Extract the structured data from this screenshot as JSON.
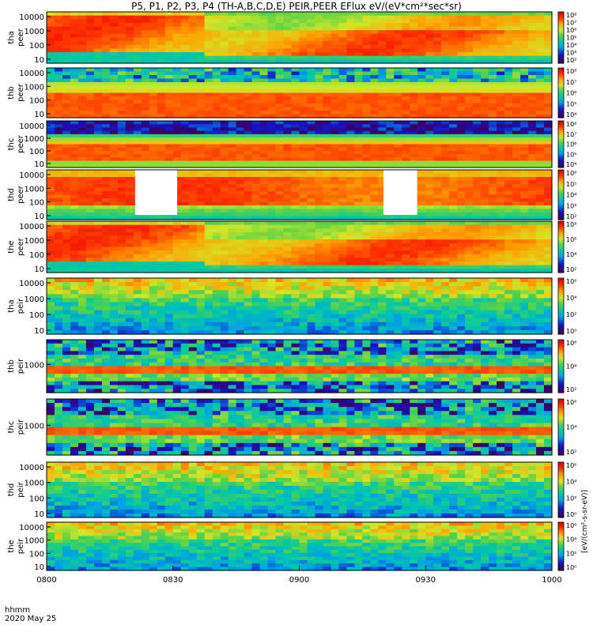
{
  "title": "P5, P1, P2, P3, P4 (TH-A,B,C,D,E) PEIR,PEER EFlux eV/(eV*cm²*sec*sr)",
  "time_axis": {
    "label_line1": "hhmm",
    "label_line2": "2020 May 25",
    "ticks": [
      "0800",
      "0830",
      "0900",
      "0930",
      "1000"
    ]
  },
  "colorbar_label": "[eV/(cm²-s-sr-eV)]",
  "chart_data": {
    "type": "heatmap",
    "x_range": [
      "0800",
      "1000"
    ],
    "panels": [
      {
        "id": "tha_peer",
        "label1": "tha",
        "label2": "peer",
        "yticks": [
          "10",
          "100",
          "1000",
          "10000"
        ],
        "cbar_ticks": [
          "10²",
          "10³",
          "10⁴",
          "10⁵",
          "10⁶",
          "10⁷",
          "10⁸"
        ],
        "style": "electron_a"
      },
      {
        "id": "thb_peer",
        "label1": "thb",
        "label2": "peer",
        "yticks": [
          "10",
          "100",
          "1000",
          "10000"
        ],
        "cbar_ticks": [
          "10⁴",
          "10⁵",
          "10⁶",
          "10⁷",
          "10⁸"
        ],
        "style": "electron_b"
      },
      {
        "id": "thc_peer",
        "label1": "thc",
        "label2": "peer",
        "yticks": [
          "10",
          "100",
          "1000",
          "10000"
        ],
        "cbar_ticks": [
          "10⁴",
          "10⁵",
          "10⁶",
          "10⁷",
          "10⁸"
        ],
        "style": "electron_c"
      },
      {
        "id": "thd_peer",
        "label1": "thd",
        "label2": "peer",
        "yticks": [
          "10",
          "100",
          "1000",
          "10000"
        ],
        "cbar_ticks": [
          "10²",
          "10³",
          "10⁴",
          "10⁵",
          "10⁶"
        ],
        "style": "electron_d",
        "gaps": [
          [
            "0821",
            "0831"
          ],
          [
            "0920",
            "0928"
          ]
        ]
      },
      {
        "id": "the_peer",
        "label1": "the",
        "label2": "peer",
        "yticks": [
          "10",
          "100",
          "1000",
          "10000"
        ],
        "cbar_ticks": [
          "10²",
          "10⁴",
          "10⁶",
          "10⁸"
        ],
        "style": "electron_a"
      },
      {
        "id": "tha_peir",
        "label1": "tha",
        "label2": "peir",
        "yticks": [
          "10",
          "100",
          "1000",
          "10000"
        ],
        "cbar_ticks": [
          "10⁰",
          "10²",
          "10⁴",
          "10⁶"
        ],
        "style": "ion"
      },
      {
        "id": "thb_peir",
        "label1": "thb",
        "label2": "peir",
        "yticks": [
          "1000"
        ],
        "cbar_ticks": [
          "10²",
          "10⁴",
          "10⁶"
        ],
        "style": "ion_band"
      },
      {
        "id": "thc_peir",
        "label1": "thc",
        "label2": "peir",
        "yticks": [
          "1000"
        ],
        "cbar_ticks": [
          "10²",
          "10⁴",
          "10⁶"
        ],
        "style": "ion_band"
      },
      {
        "id": "thd_peir",
        "label1": "thd",
        "label2": "peir",
        "yticks": [
          "10",
          "100",
          "1000",
          "10000"
        ],
        "cbar_ticks": [
          "10⁰",
          "10²",
          "10⁴",
          "10⁶"
        ],
        "style": "ion"
      },
      {
        "id": "the_peir",
        "label1": "the",
        "label2": "peir",
        "yticks": [
          "10",
          "100",
          "1000",
          "10000"
        ],
        "cbar_ticks": [
          "10⁰",
          "10²",
          "10⁴",
          "10⁶"
        ],
        "style": "ion"
      }
    ]
  }
}
